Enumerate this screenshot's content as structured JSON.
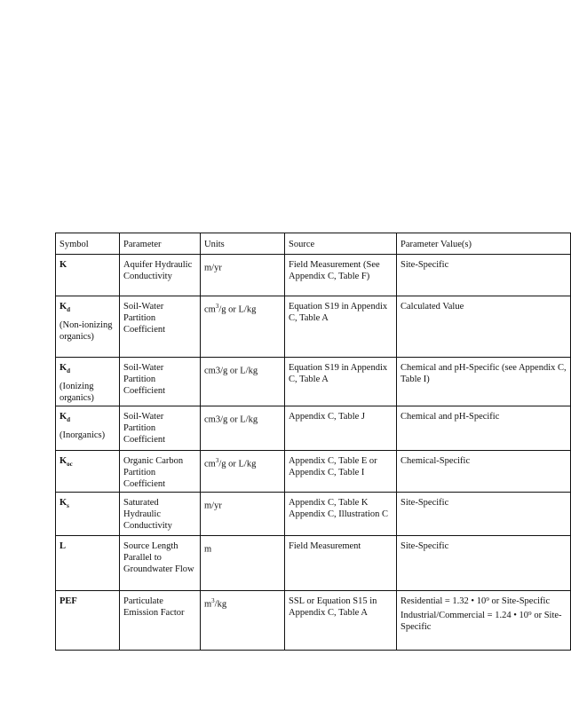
{
  "headers": [
    "Symbol",
    "Parameter",
    "Units",
    "Source",
    "Parameter Value(s)"
  ],
  "rows": [
    {
      "symbol": "K",
      "symbol_sub": "",
      "qualifier": "",
      "parameter": "Aquifer Hydraulic Conductivity",
      "units": "m/yr",
      "units_sup": "",
      "units_rest": "",
      "source": "Field Measurement (See Appendix C, Table F)",
      "value": "Site-Specific",
      "value2": ""
    },
    {
      "symbol": "K",
      "symbol_sub": "d",
      "qualifier": "(Non-ionizing organics)",
      "parameter": "Soil-Water Partition Coefficient",
      "units": "cm",
      "units_sup": "3",
      "units_rest": "/g or L/kg",
      "source": "Equation S19 in Appendix C, Table A",
      "value": "Calculated Value",
      "value2": ""
    },
    {
      "symbol": "K",
      "symbol_sub": "d",
      "qualifier": "(Ionizing organics)",
      "parameter": "Soil-Water Partition Coefficient",
      "units": "cm3/g or L/kg",
      "units_sup": "",
      "units_rest": "",
      "source": "Equation S19 in Appendix C, Table A",
      "value": "Chemical and pH-Specific (see Appendix C, Table I)",
      "value2": ""
    },
    {
      "symbol": "K",
      "symbol_sub": "d",
      "qualifier": "(Inorganics)",
      "parameter": "Soil-Water Partition Coefficient",
      "units": "cm3/g or L/kg",
      "units_sup": "",
      "units_rest": "",
      "source": "Appendix C, Table J",
      "value": "Chemical and pH-Specific",
      "value2": ""
    },
    {
      "symbol": "K",
      "symbol_sub": "oc",
      "qualifier": "",
      "parameter": "Organic Carbon Partition Coefficient",
      "units": "cm",
      "units_sup": "3",
      "units_rest": "/g or L/kg",
      "source": "Appendix C, Table E or Appendix C, Table I",
      "value": "Chemical-Specific",
      "value2": ""
    },
    {
      "symbol": "K",
      "symbol_sub": "s",
      "qualifier": "",
      "parameter": "Saturated Hydraulic Conductivity",
      "units": "m/yr",
      "units_sup": "",
      "units_rest": "",
      "source": "Appendix C, Table K Appendix C, Illustration C",
      "value": "Site-Specific",
      "value2": ""
    },
    {
      "symbol": "L",
      "symbol_sub": "",
      "qualifier": "",
      "parameter": "Source Length Parallel to Groundwater Flow",
      "units": "m",
      "units_sup": "",
      "units_rest": "",
      "source": "Field Measurement",
      "value": "Site-Specific",
      "value2": ""
    },
    {
      "symbol": "PEF",
      "symbol_sub": "",
      "qualifier": "",
      "parameter": "Particulate Emission Factor",
      "units": "m",
      "units_sup": "3",
      "units_rest": "/kg",
      "source": "SSL or Equation S15 in Appendix C, Table A",
      "value": "Residential = 1.32 • 10⁹ or Site-Specific",
      "value2": "Industrial/Commercial = 1.24 • 10⁹ or Site-Specific"
    }
  ]
}
